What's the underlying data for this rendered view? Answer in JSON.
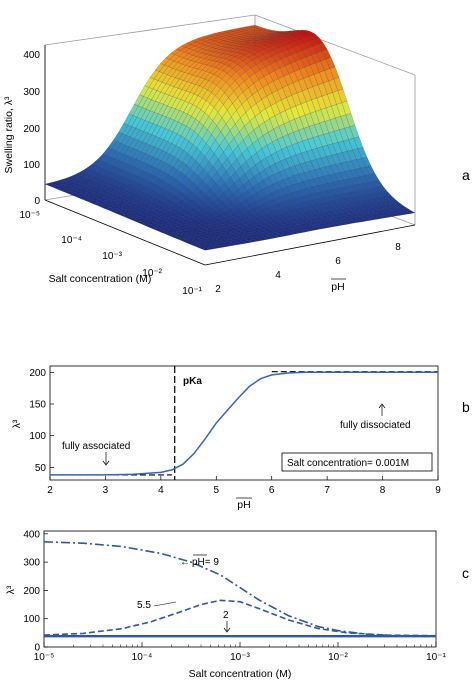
{
  "chart_data": [
    {
      "panel": "a",
      "type": "surface3d",
      "zlabel": "Swelling ratio, λ³",
      "xlabel": "Salt concentration (M)",
      "ylabel": "pH",
      "x_ticks": [
        "10⁻⁵",
        "10⁻⁴",
        "10⁻³",
        "10⁻²",
        "10⁻¹"
      ],
      "y_ticks": [
        "2",
        "4",
        "6",
        "8"
      ],
      "z_ticks": [
        "0",
        "100",
        "200",
        "300",
        "400"
      ],
      "zlim": [
        0,
        400
      ],
      "xlim_log10": [
        -5,
        -1
      ],
      "ylim": [
        2,
        9
      ],
      "peak": {
        "pH": 9,
        "log10_salt": -5,
        "value": 395
      },
      "colormap": [
        "#1a237e",
        "#2d6fb5",
        "#49c9d8",
        "#e5e83a",
        "#f08a20",
        "#c41212"
      ]
    },
    {
      "panel": "b",
      "type": "line",
      "xlabel": "pH",
      "ylabel": "λ³",
      "xlim": [
        2,
        9
      ],
      "ylim": [
        30,
        210
      ],
      "x_ticks": [
        "2",
        "3",
        "4",
        "5",
        "6",
        "7",
        "8",
        "9"
      ],
      "y_ticks": [
        "50",
        "100",
        "150",
        "200"
      ],
      "series": [
        {
          "x": [
            2,
            3,
            3.5,
            4,
            4.2,
            4.4,
            4.6,
            4.8,
            5.0,
            5.2,
            5.4,
            5.6,
            5.8,
            6.0,
            6.3,
            6.6,
            7,
            8,
            9
          ],
          "y": [
            38,
            38,
            39,
            42,
            46,
            55,
            72,
            95,
            120,
            140,
            160,
            178,
            190,
            196,
            199,
            200,
            200,
            200,
            200
          ]
        }
      ],
      "asymptote_low": {
        "x": [
          2,
          4.2
        ],
        "y": 38
      },
      "asymptote_high": {
        "x": [
          6,
          9
        ],
        "y": 201
      },
      "pka_line_x": 4.25,
      "annotations": {
        "pka": "pKa",
        "fully_associated": "fully associated",
        "fully_dissociated": "fully dissociated",
        "salt_box": "Salt concentration= 0.001M"
      }
    },
    {
      "panel": "c",
      "type": "line",
      "xscale": "log",
      "xlabel": "Salt concentration (M)",
      "ylabel": "λ³",
      "xlim": [
        1e-05,
        0.1
      ],
      "ylim": [
        0,
        410
      ],
      "x_ticks": [
        "10⁻⁵",
        "10⁻⁴",
        "10⁻³",
        "10⁻²",
        "10⁻¹"
      ],
      "y_ticks": [
        "0",
        "100",
        "200",
        "300",
        "400"
      ],
      "series": [
        {
          "label": "pH= 9",
          "style": "dashdot",
          "log10x": [
            -5,
            -4.6,
            -4.2,
            -3.8,
            -3.5,
            -3.2,
            -3.0,
            -2.8,
            -2.5,
            -2.2,
            -2.0,
            -1.7,
            -1.4,
            -1
          ],
          "y": [
            372,
            367,
            355,
            330,
            300,
            255,
            210,
            165,
            110,
            72,
            58,
            45,
            40,
            38
          ]
        },
        {
          "label": "5.5",
          "style": "dashed",
          "log10x": [
            -5,
            -4.6,
            -4.2,
            -3.9,
            -3.6,
            -3.4,
            -3.2,
            -3.0,
            -2.8,
            -2.5,
            -2.2,
            -1.9,
            -1.5,
            -1
          ],
          "y": [
            42,
            48,
            65,
            90,
            125,
            150,
            165,
            160,
            135,
            95,
            65,
            50,
            42,
            40
          ]
        },
        {
          "label": "2",
          "style": "solid",
          "log10x": [
            -5,
            -1
          ],
          "y": [
            38,
            38
          ]
        }
      ],
      "labels": {
        "ph9_prefix": "←",
        "ph9": "pH= 9",
        "ph55": "5.5",
        "ph2": "2"
      }
    }
  ],
  "panel_letters": [
    "a",
    "b",
    "c"
  ]
}
